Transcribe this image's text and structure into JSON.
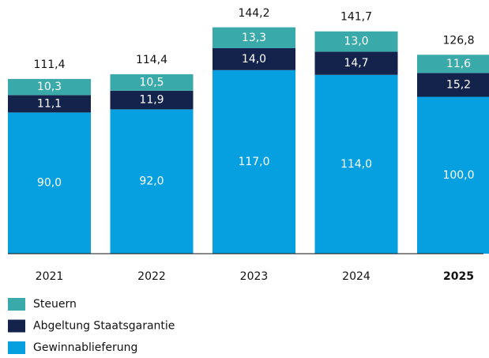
{
  "chart_data": {
    "type": "stacked_bar",
    "categories": [
      "2021",
      "2022",
      "2023",
      "2024",
      "2025"
    ],
    "highlight_index": 4,
    "series": [
      {
        "name": "Steuern",
        "color": "#3aa9a9",
        "values": [
          10.3,
          10.5,
          13.3,
          13.0,
          11.6
        ],
        "value_labels": [
          "10,3",
          "10,5",
          "13,3",
          "13,0",
          "11,6"
        ]
      },
      {
        "name": "Abgeltung Staatsgarantie",
        "color": "#14234b",
        "values": [
          11.1,
          11.9,
          14.0,
          14.7,
          15.2
        ],
        "value_labels": [
          "11,1",
          "11,9",
          "14,0",
          "14,7",
          "15,2"
        ]
      },
      {
        "name": "Gewinnablieferung",
        "color": "#069fe0",
        "values": [
          90.0,
          92.0,
          117.0,
          114.0,
          100.0
        ],
        "value_labels": [
          "90,0",
          "92,0",
          "117,0",
          "114,0",
          "100,0"
        ]
      }
    ],
    "totals": [
      111.4,
      114.4,
      144.2,
      141.7,
      126.8
    ],
    "total_labels": [
      "111,4",
      "114,4",
      "144,2",
      "141,7",
      "126,8"
    ]
  }
}
